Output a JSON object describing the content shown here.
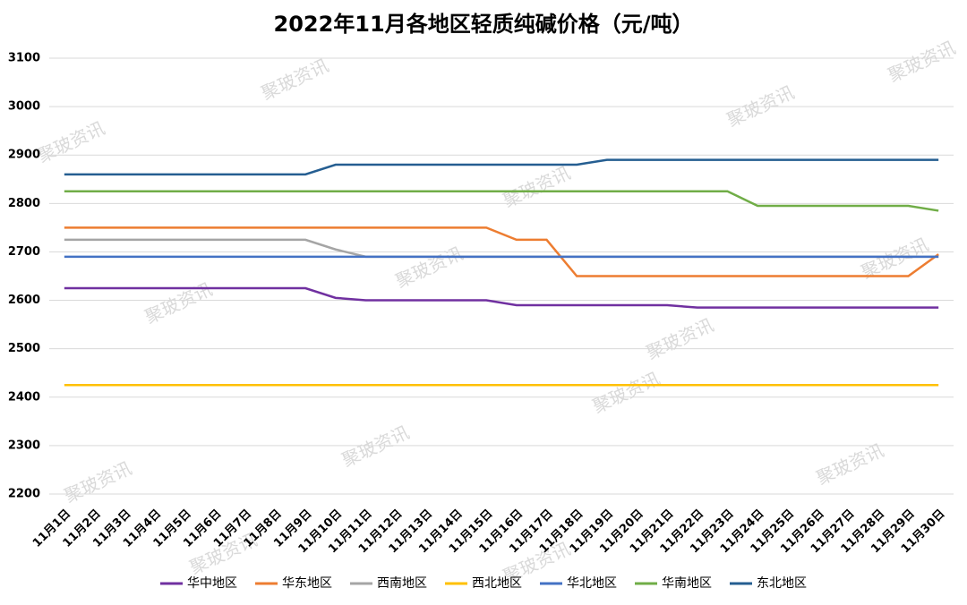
{
  "chart_data": {
    "type": "line",
    "title": "2022年11月各地区轻质纯碱价格（元/吨）",
    "watermark": "聚玻资讯",
    "categories": [
      "11月1日",
      "11月2日",
      "11月3日",
      "11月4日",
      "11月5日",
      "11月6日",
      "11月7日",
      "11月8日",
      "11月9日",
      "11月10日",
      "11月11日",
      "11月12日",
      "11月13日",
      "11月14日",
      "11月15日",
      "11月16日",
      "11月17日",
      "11月18日",
      "11月19日",
      "11月20日",
      "11月21日",
      "11月22日",
      "11月23日",
      "11月24日",
      "11月25日",
      "11月26日",
      "11月27日",
      "11月28日",
      "11月29日",
      "11月30日"
    ],
    "series": [
      {
        "name": "华中地区",
        "color": "#7030a0",
        "values": [
          2625,
          2625,
          2625,
          2625,
          2625,
          2625,
          2625,
          2625,
          2625,
          2605,
          2600,
          2600,
          2600,
          2600,
          2600,
          2590,
          2590,
          2590,
          2590,
          2590,
          2590,
          2585,
          2585,
          2585,
          2585,
          2585,
          2585,
          2585,
          2585,
          2585
        ]
      },
      {
        "name": "华东地区",
        "color": "#ed7d31",
        "values": [
          2750,
          2750,
          2750,
          2750,
          2750,
          2750,
          2750,
          2750,
          2750,
          2750,
          2750,
          2750,
          2750,
          2750,
          2750,
          2725,
          2725,
          2650,
          2650,
          2650,
          2650,
          2650,
          2650,
          2650,
          2650,
          2650,
          2650,
          2650,
          2650,
          2695
        ]
      },
      {
        "name": "西南地区",
        "color": "#a5a5a5",
        "values": [
          2725,
          2725,
          2725,
          2725,
          2725,
          2725,
          2725,
          2725,
          2725,
          2705,
          2690,
          2690,
          2690,
          2690,
          2690,
          2690,
          2690,
          2690,
          2690,
          2690,
          2690,
          2690,
          2690,
          2690,
          2690,
          2690,
          2690,
          2690,
          2690,
          2690
        ]
      },
      {
        "name": "西北地区",
        "color": "#ffc000",
        "values": [
          2425,
          2425,
          2425,
          2425,
          2425,
          2425,
          2425,
          2425,
          2425,
          2425,
          2425,
          2425,
          2425,
          2425,
          2425,
          2425,
          2425,
          2425,
          2425,
          2425,
          2425,
          2425,
          2425,
          2425,
          2425,
          2425,
          2425,
          2425,
          2425,
          2425
        ]
      },
      {
        "name": "华北地区",
        "color": "#4472c4",
        "values": [
          2690,
          2690,
          2690,
          2690,
          2690,
          2690,
          2690,
          2690,
          2690,
          2690,
          2690,
          2690,
          2690,
          2690,
          2690,
          2690,
          2690,
          2690,
          2690,
          2690,
          2690,
          2690,
          2690,
          2690,
          2690,
          2690,
          2690,
          2690,
          2690,
          2690
        ]
      },
      {
        "name": "华南地区",
        "color": "#70ad47",
        "values": [
          2825,
          2825,
          2825,
          2825,
          2825,
          2825,
          2825,
          2825,
          2825,
          2825,
          2825,
          2825,
          2825,
          2825,
          2825,
          2825,
          2825,
          2825,
          2825,
          2825,
          2825,
          2825,
          2825,
          2795,
          2795,
          2795,
          2795,
          2795,
          2795,
          2785
        ]
      },
      {
        "name": "东北地区",
        "color": "#255e91",
        "values": [
          2860,
          2860,
          2860,
          2860,
          2860,
          2860,
          2860,
          2860,
          2860,
          2880,
          2880,
          2880,
          2880,
          2880,
          2880,
          2880,
          2880,
          2880,
          2890,
          2890,
          2890,
          2890,
          2890,
          2890,
          2890,
          2890,
          2890,
          2890,
          2890,
          2890
        ]
      }
    ],
    "ylim": [
      2200,
      3100
    ],
    "yticks": [
      2200,
      2300,
      2400,
      2500,
      2600,
      2700,
      2800,
      2900,
      3000,
      3100
    ],
    "grid": true,
    "legend": "bottom"
  }
}
